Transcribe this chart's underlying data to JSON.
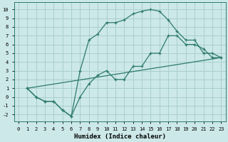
{
  "xlabel": "Humidex (Indice chaleur)",
  "background_color": "#cce8e8",
  "line_color": "#2d7a6e",
  "grid_color": "#aacece",
  "xlim": [
    -0.5,
    23.5
  ],
  "ylim": [
    -2.8,
    10.8
  ],
  "xticks": [
    0,
    1,
    2,
    3,
    4,
    5,
    6,
    7,
    8,
    9,
    10,
    11,
    12,
    13,
    14,
    15,
    16,
    17,
    18,
    19,
    20,
    21,
    22,
    23
  ],
  "yticks": [
    -2,
    -1,
    0,
    1,
    2,
    3,
    4,
    5,
    6,
    7,
    8,
    9,
    10
  ],
  "line1_x": [
    1,
    2,
    3,
    4,
    5,
    6,
    7,
    8,
    9,
    10,
    11,
    12,
    13,
    14,
    15,
    16,
    17,
    18,
    19,
    20,
    21,
    22,
    23
  ],
  "line1_y": [
    1,
    0,
    -0.5,
    -0.5,
    -1.5,
    -2.2,
    3.0,
    6.5,
    7.2,
    8.5,
    8.5,
    8.8,
    9.5,
    9.8,
    10.0,
    9.8,
    8.8,
    7.5,
    6.5,
    6.5,
    5.0,
    5.0,
    4.5
  ],
  "line2_x": [
    1,
    2,
    3,
    4,
    5,
    6,
    7,
    8,
    9,
    10,
    11,
    12,
    13,
    14,
    15,
    16,
    17,
    18,
    19,
    20,
    21,
    22,
    23
  ],
  "line2_y": [
    1,
    0,
    -0.5,
    -0.5,
    -1.5,
    -2.2,
    0.0,
    1.5,
    2.5,
    3.0,
    2.0,
    2.0,
    3.5,
    3.5,
    5.0,
    5.0,
    7.0,
    7.0,
    6.0,
    6.0,
    5.5,
    4.5,
    4.5
  ],
  "line3_x": [
    1,
    23
  ],
  "line3_y": [
    1,
    4.5
  ],
  "figsize": [
    3.2,
    2.0
  ],
  "dpi": 100
}
